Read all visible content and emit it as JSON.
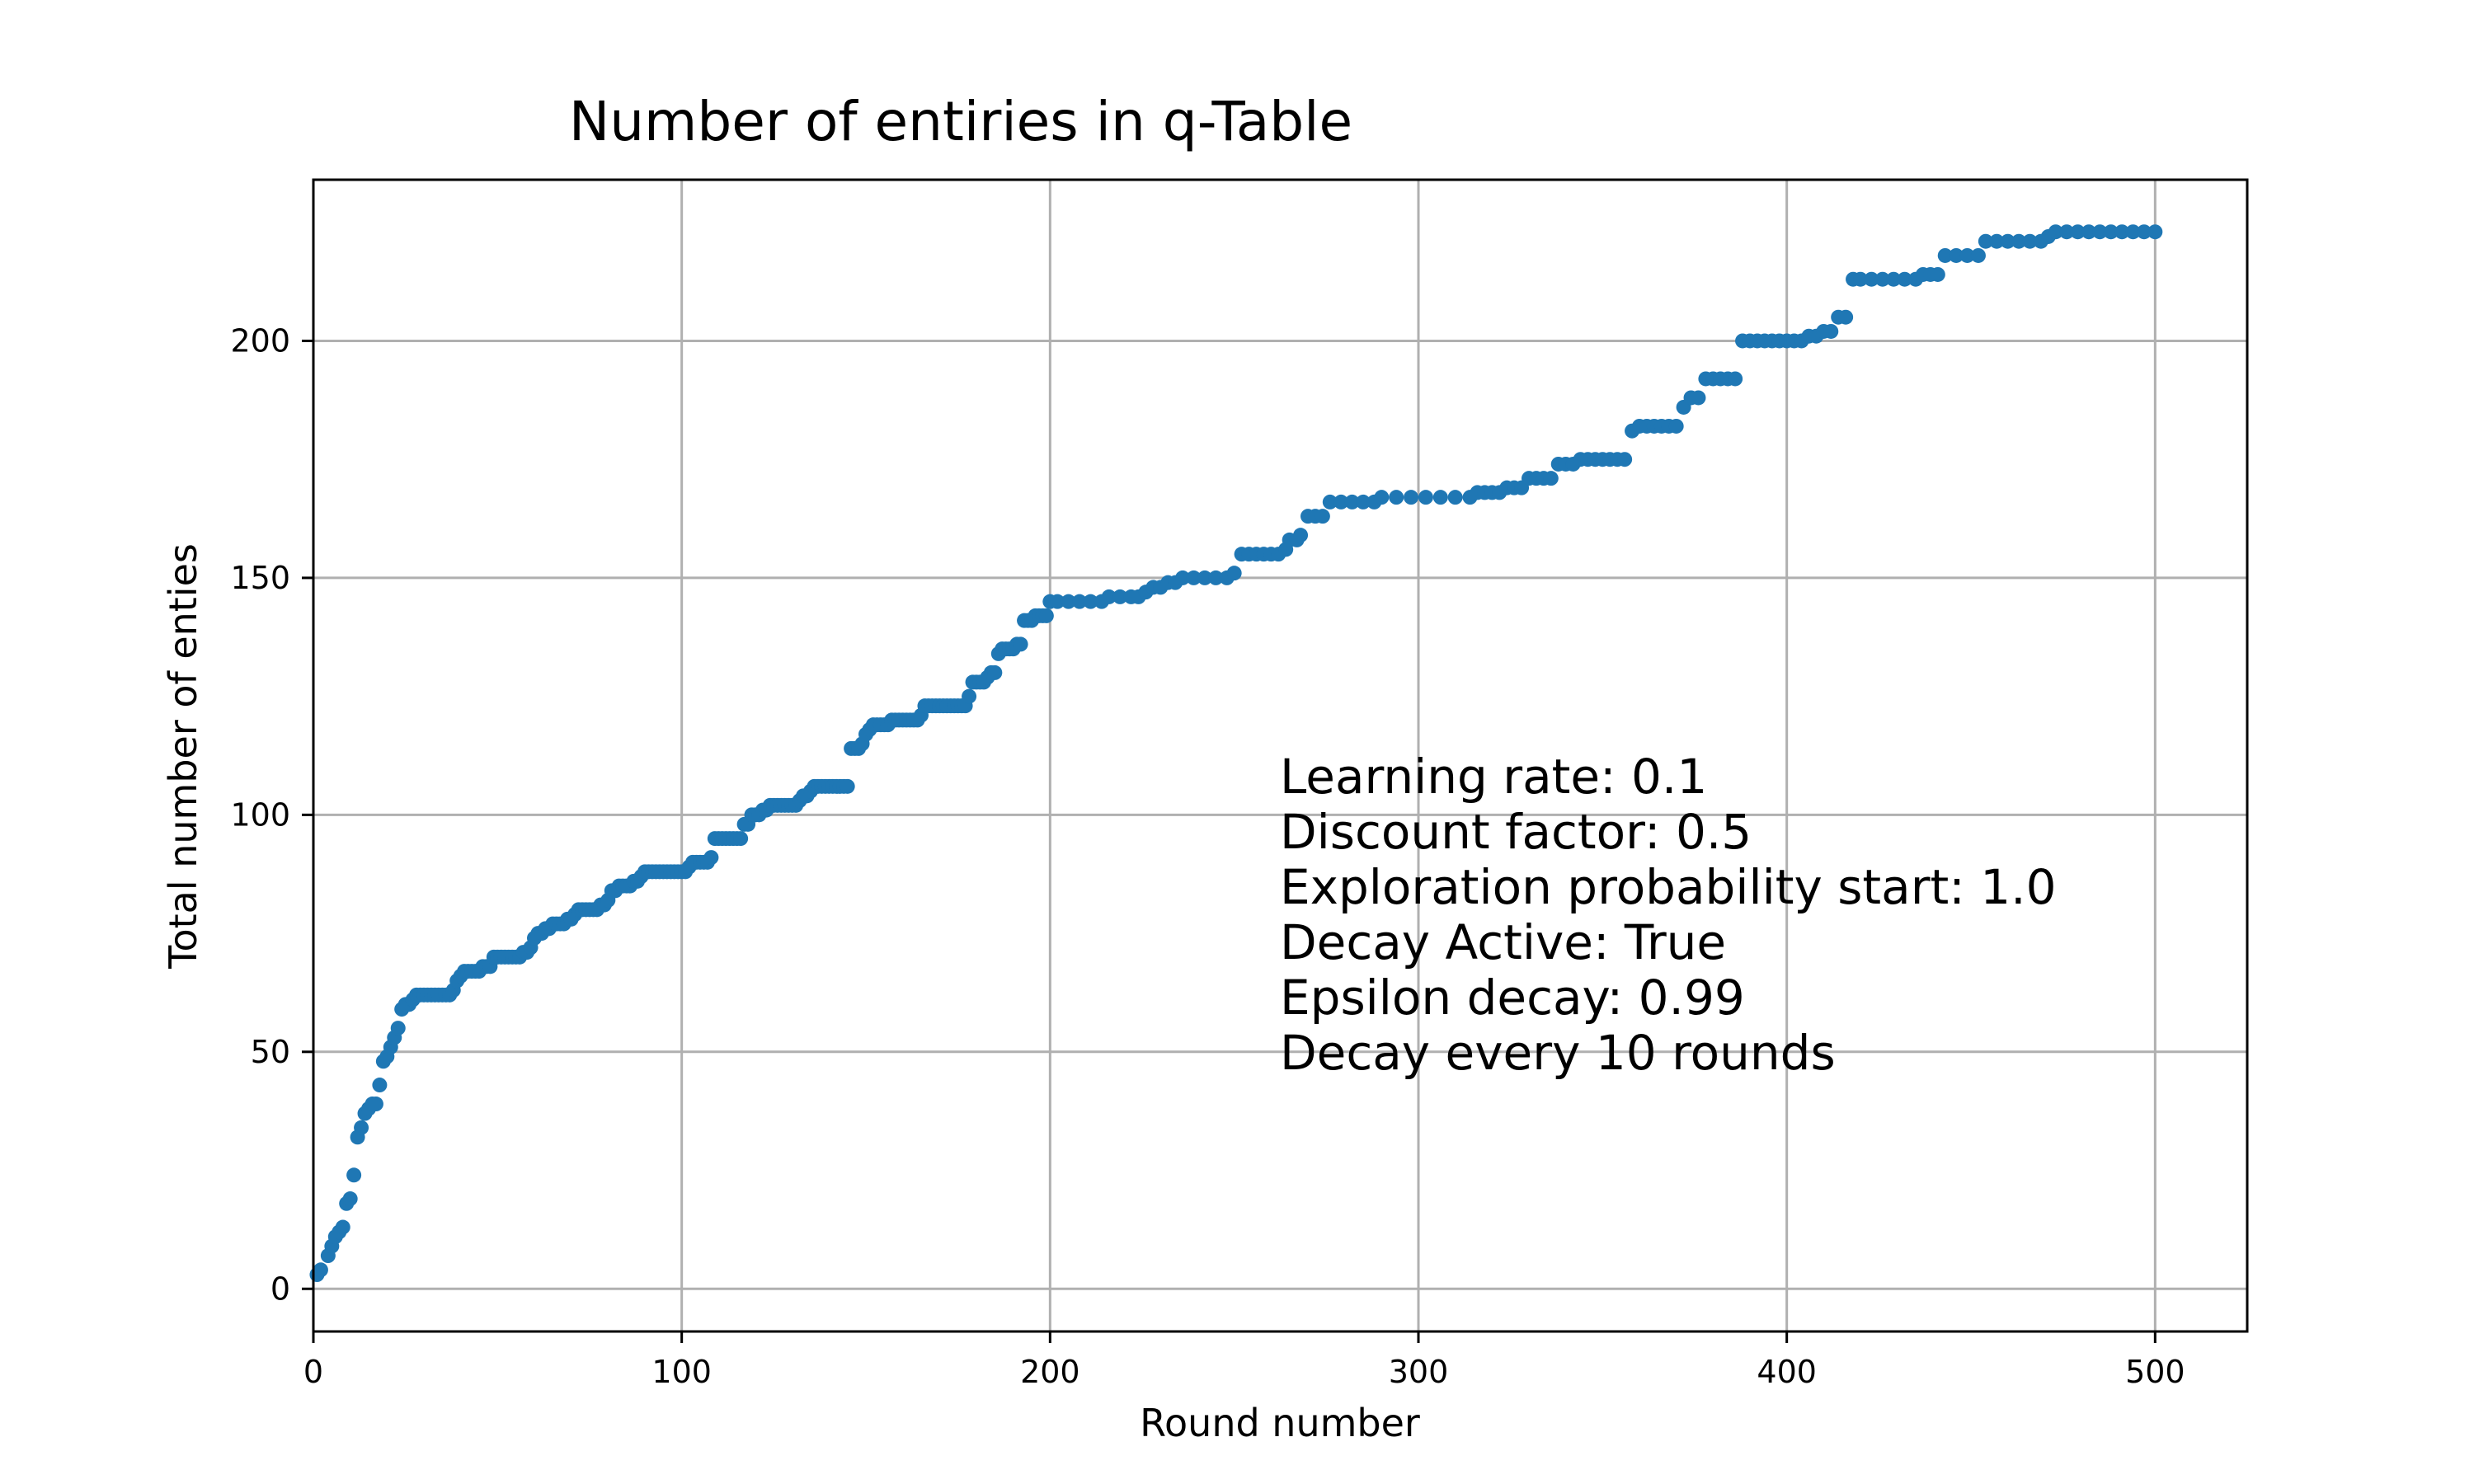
{
  "chart_data": {
    "type": "scatter",
    "title": "Number of entiries in q-Table",
    "xlabel": "Round number",
    "ylabel": "Total number of enties",
    "xlim": [
      0,
      525
    ],
    "ylim": [
      -9,
      234
    ],
    "xticks": [
      0,
      100,
      200,
      300,
      400,
      500
    ],
    "yticks": [
      0,
      50,
      100,
      150,
      200
    ],
    "grid": true,
    "legend": "none",
    "color": "#1f77b4",
    "annotation": [
      "Learning rate: 0.1",
      "Discount factor: 0.5",
      "Exploration probability start: 1.0",
      "Decay Active: True",
      "Epsilon decay: 0.99",
      "Decay every 10 rounds"
    ],
    "points": [
      [
        1,
        3
      ],
      [
        2,
        4
      ],
      [
        4,
        7
      ],
      [
        5,
        9
      ],
      [
        6,
        11
      ],
      [
        7,
        12
      ],
      [
        8,
        13
      ],
      [
        9,
        18
      ],
      [
        10,
        19
      ],
      [
        11,
        24
      ],
      [
        12,
        32
      ],
      [
        13,
        34
      ],
      [
        14,
        37
      ],
      [
        15,
        38
      ],
      [
        16,
        39
      ],
      [
        17,
        39
      ],
      [
        18,
        43
      ],
      [
        19,
        48
      ],
      [
        20,
        49
      ],
      [
        21,
        51
      ],
      [
        22,
        53
      ],
      [
        23,
        55
      ],
      [
        24,
        59
      ],
      [
        25,
        60
      ],
      [
        26,
        60
      ],
      [
        27,
        61
      ],
      [
        28,
        62
      ],
      [
        29,
        62
      ],
      [
        30,
        62
      ],
      [
        31,
        62
      ],
      [
        32,
        62
      ],
      [
        33,
        62
      ],
      [
        34,
        62
      ],
      [
        35,
        62
      ],
      [
        36,
        62
      ],
      [
        37,
        62
      ],
      [
        38,
        63
      ],
      [
        39,
        65
      ],
      [
        40,
        66
      ],
      [
        41,
        67
      ],
      [
        42,
        67
      ],
      [
        43,
        67
      ],
      [
        44,
        67
      ],
      [
        45,
        67
      ],
      [
        46,
        68
      ],
      [
        47,
        68
      ],
      [
        48,
        68
      ],
      [
        49,
        70
      ],
      [
        50,
        70
      ],
      [
        51,
        70
      ],
      [
        52,
        70
      ],
      [
        53,
        70
      ],
      [
        54,
        70
      ],
      [
        55,
        70
      ],
      [
        56,
        70
      ],
      [
        57,
        71
      ],
      [
        58,
        71
      ],
      [
        59,
        72
      ],
      [
        60,
        74
      ],
      [
        61,
        75
      ],
      [
        62,
        75
      ],
      [
        63,
        76
      ],
      [
        64,
        76
      ],
      [
        65,
        77
      ],
      [
        66,
        77
      ],
      [
        67,
        77
      ],
      [
        68,
        77
      ],
      [
        69,
        78
      ],
      [
        70,
        78
      ],
      [
        71,
        79
      ],
      [
        72,
        80
      ],
      [
        73,
        80
      ],
      [
        74,
        80
      ],
      [
        75,
        80
      ],
      [
        76,
        80
      ],
      [
        77,
        80
      ],
      [
        78,
        81
      ],
      [
        79,
        81
      ],
      [
        80,
        82
      ],
      [
        81,
        84
      ],
      [
        82,
        84
      ],
      [
        83,
        85
      ],
      [
        84,
        85
      ],
      [
        85,
        85
      ],
      [
        86,
        85
      ],
      [
        87,
        86
      ],
      [
        88,
        86
      ],
      [
        89,
        87
      ],
      [
        90,
        88
      ],
      [
        91,
        88
      ],
      [
        92,
        88
      ],
      [
        93,
        88
      ],
      [
        94,
        88
      ],
      [
        95,
        88
      ],
      [
        96,
        88
      ],
      [
        97,
        88
      ],
      [
        98,
        88
      ],
      [
        99,
        88
      ],
      [
        100,
        88
      ],
      [
        101,
        88
      ],
      [
        102,
        89
      ],
      [
        103,
        90
      ],
      [
        104,
        90
      ],
      [
        105,
        90
      ],
      [
        106,
        90
      ],
      [
        107,
        90
      ],
      [
        108,
        91
      ],
      [
        109,
        95
      ],
      [
        110,
        95
      ],
      [
        111,
        95
      ],
      [
        112,
        95
      ],
      [
        113,
        95
      ],
      [
        114,
        95
      ],
      [
        115,
        95
      ],
      [
        116,
        95
      ],
      [
        117,
        98
      ],
      [
        118,
        98
      ],
      [
        119,
        100
      ],
      [
        120,
        100
      ],
      [
        121,
        100
      ],
      [
        122,
        101
      ],
      [
        123,
        101
      ],
      [
        124,
        102
      ],
      [
        125,
        102
      ],
      [
        126,
        102
      ],
      [
        127,
        102
      ],
      [
        128,
        102
      ],
      [
        129,
        102
      ],
      [
        130,
        102
      ],
      [
        131,
        102
      ],
      [
        132,
        103
      ],
      [
        133,
        104
      ],
      [
        134,
        104
      ],
      [
        135,
        105
      ],
      [
        136,
        106
      ],
      [
        137,
        106
      ],
      [
        138,
        106
      ],
      [
        139,
        106
      ],
      [
        140,
        106
      ],
      [
        141,
        106
      ],
      [
        142,
        106
      ],
      [
        143,
        106
      ],
      [
        144,
        106
      ],
      [
        145,
        106
      ],
      [
        146,
        114
      ],
      [
        147,
        114
      ],
      [
        148,
        114
      ],
      [
        149,
        115
      ],
      [
        150,
        117
      ],
      [
        151,
        118
      ],
      [
        152,
        119
      ],
      [
        153,
        119
      ],
      [
        154,
        119
      ],
      [
        155,
        119
      ],
      [
        156,
        119
      ],
      [
        157,
        120
      ],
      [
        158,
        120
      ],
      [
        159,
        120
      ],
      [
        160,
        120
      ],
      [
        161,
        120
      ],
      [
        162,
        120
      ],
      [
        163,
        120
      ],
      [
        164,
        120
      ],
      [
        165,
        121
      ],
      [
        166,
        123
      ],
      [
        167,
        123
      ],
      [
        168,
        123
      ],
      [
        169,
        123
      ],
      [
        170,
        123
      ],
      [
        171,
        123
      ],
      [
        172,
        123
      ],
      [
        173,
        123
      ],
      [
        174,
        123
      ],
      [
        175,
        123
      ],
      [
        176,
        123
      ],
      [
        177,
        123
      ],
      [
        178,
        125
      ],
      [
        179,
        128
      ],
      [
        180,
        128
      ],
      [
        181,
        128
      ],
      [
        182,
        128
      ],
      [
        183,
        129
      ],
      [
        184,
        130
      ],
      [
        185,
        130
      ],
      [
        186,
        134
      ],
      [
        187,
        135
      ],
      [
        188,
        135
      ],
      [
        189,
        135
      ],
      [
        190,
        135
      ],
      [
        191,
        136
      ],
      [
        192,
        136
      ],
      [
        193,
        141
      ],
      [
        194,
        141
      ],
      [
        195,
        141
      ],
      [
        196,
        142
      ],
      [
        197,
        142
      ],
      [
        198,
        142
      ],
      [
        199,
        142
      ],
      [
        200,
        145
      ],
      [
        202,
        145
      ],
      [
        205,
        145
      ],
      [
        208,
        145
      ],
      [
        211,
        145
      ],
      [
        214,
        145
      ],
      [
        216,
        146
      ],
      [
        219,
        146
      ],
      [
        222,
        146
      ],
      [
        224,
        146
      ],
      [
        226,
        147
      ],
      [
        228,
        148
      ],
      [
        230,
        148
      ],
      [
        232,
        149
      ],
      [
        234,
        149
      ],
      [
        236,
        150
      ],
      [
        239,
        150
      ],
      [
        242,
        150
      ],
      [
        245,
        150
      ],
      [
        248,
        150
      ],
      [
        250,
        151
      ],
      [
        252,
        155
      ],
      [
        254,
        155
      ],
      [
        256,
        155
      ],
      [
        258,
        155
      ],
      [
        260,
        155
      ],
      [
        262,
        155
      ],
      [
        264,
        156
      ],
      [
        265,
        158
      ],
      [
        267,
        158
      ],
      [
        268,
        159
      ],
      [
        270,
        163
      ],
      [
        272,
        163
      ],
      [
        274,
        163
      ],
      [
        276,
        166
      ],
      [
        279,
        166
      ],
      [
        282,
        166
      ],
      [
        285,
        166
      ],
      [
        288,
        166
      ],
      [
        290,
        167
      ],
      [
        294,
        167
      ],
      [
        298,
        167
      ],
      [
        302,
        167
      ],
      [
        306,
        167
      ],
      [
        310,
        167
      ],
      [
        314,
        167
      ],
      [
        316,
        168
      ],
      [
        318,
        168
      ],
      [
        320,
        168
      ],
      [
        322,
        168
      ],
      [
        324,
        169
      ],
      [
        326,
        169
      ],
      [
        328,
        169
      ],
      [
        330,
        171
      ],
      [
        332,
        171
      ],
      [
        334,
        171
      ],
      [
        336,
        171
      ],
      [
        338,
        174
      ],
      [
        340,
        174
      ],
      [
        342,
        174
      ],
      [
        344,
        175
      ],
      [
        346,
        175
      ],
      [
        348,
        175
      ],
      [
        350,
        175
      ],
      [
        352,
        175
      ],
      [
        354,
        175
      ],
      [
        356,
        175
      ],
      [
        358,
        181
      ],
      [
        360,
        182
      ],
      [
        362,
        182
      ],
      [
        364,
        182
      ],
      [
        366,
        182
      ],
      [
        368,
        182
      ],
      [
        370,
        182
      ],
      [
        372,
        186
      ],
      [
        374,
        188
      ],
      [
        376,
        188
      ],
      [
        378,
        192
      ],
      [
        380,
        192
      ],
      [
        382,
        192
      ],
      [
        384,
        192
      ],
      [
        386,
        192
      ],
      [
        388,
        200
      ],
      [
        390,
        200
      ],
      [
        392,
        200
      ],
      [
        394,
        200
      ],
      [
        396,
        200
      ],
      [
        398,
        200
      ],
      [
        400,
        200
      ],
      [
        402,
        200
      ],
      [
        404,
        200
      ],
      [
        406,
        201
      ],
      [
        408,
        201
      ],
      [
        410,
        202
      ],
      [
        412,
        202
      ],
      [
        414,
        205
      ],
      [
        416,
        205
      ],
      [
        418,
        213
      ],
      [
        420,
        213
      ],
      [
        423,
        213
      ],
      [
        426,
        213
      ],
      [
        429,
        213
      ],
      [
        432,
        213
      ],
      [
        435,
        213
      ],
      [
        437,
        214
      ],
      [
        439,
        214
      ],
      [
        441,
        214
      ],
      [
        443,
        218
      ],
      [
        446,
        218
      ],
      [
        449,
        218
      ],
      [
        452,
        218
      ],
      [
        454,
        221
      ],
      [
        457,
        221
      ],
      [
        460,
        221
      ],
      [
        463,
        221
      ],
      [
        466,
        221
      ],
      [
        469,
        221
      ],
      [
        471,
        222
      ],
      [
        473,
        223
      ],
      [
        476,
        223
      ],
      [
        479,
        223
      ],
      [
        482,
        223
      ],
      [
        485,
        223
      ],
      [
        488,
        223
      ],
      [
        491,
        223
      ],
      [
        494,
        223
      ],
      [
        497,
        223
      ],
      [
        500,
        223
      ]
    ]
  }
}
